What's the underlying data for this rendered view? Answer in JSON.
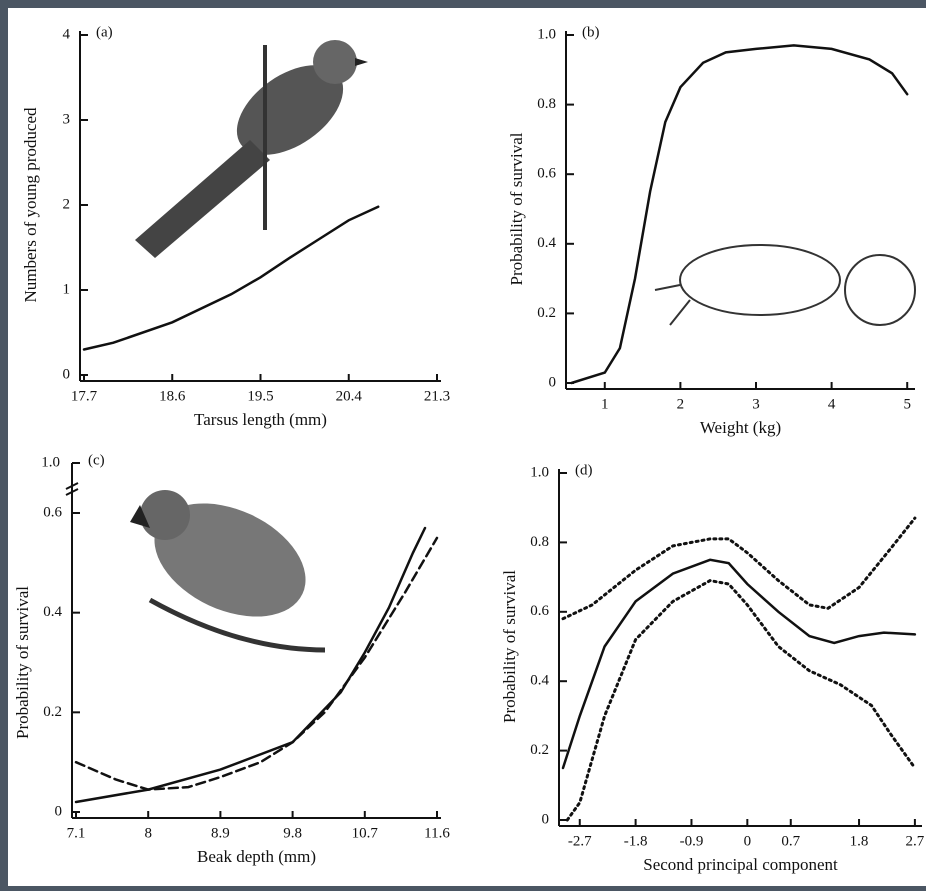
{
  "chart_data": [
    {
      "type": "line",
      "label": "(a)",
      "xlabel": "Tarsus length (mm)",
      "ylabel": "Numbers of young produced",
      "xlim": [
        17.7,
        21.3
      ],
      "xticks": [
        17.7,
        18.6,
        19.5,
        20.4,
        21.3
      ],
      "ylim": [
        0,
        4
      ],
      "yticks": [
        0,
        1,
        2,
        3,
        4
      ],
      "series": [
        {
          "color": "#111111",
          "dash": "solid",
          "x": [
            17.7,
            18.0,
            18.6,
            19.2,
            19.5,
            19.8,
            20.1,
            20.4,
            20.7
          ],
          "values": [
            0.3,
            0.38,
            0.62,
            0.95,
            1.15,
            1.38,
            1.6,
            1.82,
            1.98
          ]
        }
      ]
    },
    {
      "type": "line",
      "label": "(b)",
      "xlabel": "Weight (kg)",
      "ylabel": "Probability of survival",
      "xlim": [
        0.54,
        5.05
      ],
      "xticks": [
        1,
        2,
        3,
        4,
        5
      ],
      "ylim": [
        0,
        1
      ],
      "yticks": [
        0,
        {
          "value": 0.2,
          "label": "0.2"
        },
        {
          "value": 0.4,
          "label": "0.4"
        },
        {
          "value": 0.6,
          "label": "0.6"
        },
        {
          "value": 0.8,
          "label": "0.8"
        },
        {
          "value": 1,
          "label": "1.0"
        }
      ],
      "series": [
        {
          "color": "#111111",
          "dash": "solid",
          "x": [
            0.56,
            1.0,
            1.2,
            1.4,
            1.6,
            1.8,
            2.0,
            2.3,
            2.6,
            3.0,
            3.5,
            4.0,
            4.5,
            4.8,
            5.0
          ],
          "values": [
            0,
            0.03,
            0.1,
            0.3,
            0.55,
            0.75,
            0.85,
            0.92,
            0.95,
            0.96,
            0.97,
            0.96,
            0.93,
            0.89,
            0.83
          ]
        }
      ]
    },
    {
      "type": "line",
      "label": "(c)",
      "xlabel": "Beak depth (mm)",
      "ylabel": "Probability of survival",
      "break_label": "1.0",
      "xlim": [
        7.1,
        11.6
      ],
      "xticks": [
        7.1,
        8.0,
        8.9,
        9.8,
        10.7,
        11.6
      ],
      "ylim": [
        0,
        0.6
      ],
      "yticks": [
        0,
        {
          "value": 0.2,
          "label": "0.2"
        },
        {
          "value": 0.4,
          "label": "0.4"
        },
        {
          "value": 0.6,
          "label": "0.6"
        }
      ],
      "series": [
        {
          "color": "#111111",
          "dash": "solid",
          "x": [
            7.1,
            8.0,
            8.9,
            9.8,
            10.4,
            10.7,
            11.0,
            11.3,
            11.45
          ],
          "values": [
            0.02,
            0.045,
            0.085,
            0.14,
            0.24,
            0.32,
            0.41,
            0.52,
            0.57
          ]
        },
        {
          "color": "#111111",
          "dash": "dashed",
          "x": [
            7.1,
            7.6,
            8.0,
            8.5,
            8.9,
            9.4,
            9.8,
            10.2,
            10.7,
            11.2,
            11.6
          ],
          "values": [
            0.1,
            0.065,
            0.045,
            0.05,
            0.07,
            0.1,
            0.14,
            0.2,
            0.31,
            0.44,
            0.55
          ]
        }
      ]
    },
    {
      "type": "line",
      "label": "(d)",
      "xlabel": "Second principal component",
      "ylabel": "Probability of survival",
      "xlim": [
        -2.97,
        2.75
      ],
      "xticks": [
        -2.7,
        -1.8,
        -0.9,
        0,
        0.7,
        1.8,
        2.7
      ],
      "ylim": [
        0,
        1
      ],
      "yticks": [
        0,
        {
          "value": 0.2,
          "label": "0.2"
        },
        {
          "value": 0.4,
          "label": "0.4"
        },
        {
          "value": 0.6,
          "label": "0.6"
        },
        {
          "value": 0.8,
          "label": "0.8"
        },
        {
          "value": 1,
          "label": "1.0"
        }
      ],
      "series": [
        {
          "color": "#111111",
          "dash": "solid",
          "x": [
            -2.97,
            -2.7,
            -2.3,
            -1.8,
            -1.2,
            -0.6,
            -0.3,
            0,
            0.5,
            1.0,
            1.4,
            1.8,
            2.2,
            2.7
          ],
          "values": [
            0.15,
            0.3,
            0.5,
            0.63,
            0.71,
            0.75,
            0.74,
            0.68,
            0.6,
            0.53,
            0.51,
            0.53,
            0.54,
            0.535
          ]
        },
        {
          "color": "#111111",
          "dash": "dotted",
          "x": [
            -2.97,
            -2.5,
            -1.8,
            -1.2,
            -0.6,
            -0.3,
            0,
            0.5,
            1.0,
            1.3,
            1.8,
            2.3,
            2.7
          ],
          "values": [
            0.58,
            0.62,
            0.72,
            0.79,
            0.81,
            0.81,
            0.77,
            0.69,
            0.62,
            0.61,
            0.67,
            0.78,
            0.87
          ]
        },
        {
          "color": "#111111",
          "dash": "dotted",
          "x": [
            -2.9,
            -2.7,
            -2.3,
            -1.8,
            -1.2,
            -0.6,
            -0.3,
            0,
            0.5,
            1.0,
            1.5,
            2.0,
            2.3,
            2.7
          ],
          "values": [
            0,
            0.05,
            0.3,
            0.52,
            0.63,
            0.69,
            0.68,
            0.62,
            0.5,
            0.43,
            0.39,
            0.33,
            0.25,
            0.15
          ]
        }
      ]
    }
  ]
}
